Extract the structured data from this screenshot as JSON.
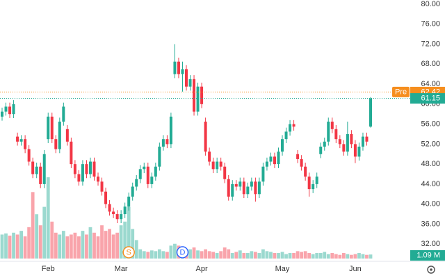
{
  "chart_data": {
    "type": "candlestick",
    "categories": [
      null,
      null,
      null,
      null,
      null,
      null,
      null,
      null,
      null,
      null,
      null,
      null,
      "Feb",
      null,
      null,
      null,
      null,
      null,
      null,
      null,
      null,
      null,
      null,
      null,
      null,
      null,
      null,
      null,
      null,
      null,
      null,
      "Mar",
      null,
      null,
      null,
      null,
      null,
      null,
      null,
      null,
      null,
      null,
      null,
      null,
      null,
      null,
      null,
      null,
      null,
      null,
      null,
      null,
      "Apr",
      null,
      null,
      null,
      null,
      null,
      null,
      null,
      null,
      null,
      null,
      null,
      null,
      null,
      null,
      null,
      null,
      null,
      null,
      null,
      null,
      "May",
      null,
      null,
      null,
      null,
      null,
      null,
      null,
      null,
      null,
      null,
      null,
      null,
      null,
      null,
      null,
      null,
      null,
      null,
      "Jun",
      null,
      null,
      null,
      null
    ],
    "open": [
      57.5,
      58.5,
      59.5,
      58.0,
      53.5,
      52.5,
      53.0,
      51.0,
      48.5,
      46.0,
      47.5,
      44.0,
      53.0,
      57.5,
      53.0,
      51.0,
      56.5,
      55.0,
      52.5,
      48.0,
      46.0,
      44.5,
      48.0,
      46.0,
      48.5,
      45.5,
      44.5,
      42.5,
      40.0,
      38.5,
      38.0,
      37.0,
      38.0,
      39.5,
      41.5,
      43.5,
      45.0,
      47.0,
      47.5,
      44.0,
      45.5,
      47.5,
      51.5,
      53.0,
      52.0,
      66.0,
      68.5,
      66.0,
      67.0,
      63.5,
      65.0,
      58.5,
      63.5,
      56.5,
      50.5,
      48.5,
      47.0,
      48.5,
      47.5,
      45.0,
      41.5,
      44.0,
      43.5,
      44.5,
      42.0,
      43.5,
      44.5,
      42.0,
      44.5,
      47.5,
      48.5,
      49.5,
      48.0,
      50.5,
      53.0,
      54.5,
      56.0,
      50.0,
      49.0,
      47.5,
      45.5,
      43.0,
      44.0,
      50.0,
      51.5,
      52.5,
      56.5,
      55.0,
      53.0,
      52.0,
      50.5,
      54.0,
      52.0,
      49.5,
      51.5,
      53.5,
      55.5
    ],
    "high": [
      59.3,
      60.3,
      60.3,
      60.8,
      54.3,
      53.8,
      53.8,
      51.8,
      49.3,
      48.3,
      48.3,
      50.8,
      58.3,
      58.3,
      53.8,
      57.3,
      60.3,
      55.8,
      53.3,
      48.8,
      46.8,
      48.8,
      48.8,
      49.3,
      49.3,
      46.3,
      45.3,
      43.3,
      40.8,
      39.3,
      38.8,
      38.8,
      40.3,
      42.3,
      44.3,
      45.8,
      47.8,
      48.3,
      48.3,
      46.3,
      48.3,
      52.3,
      53.8,
      53.8,
      58.3,
      72.0,
      69.3,
      68.5,
      67.8,
      65.8,
      65.8,
      64.3,
      64.3,
      57.3,
      51.3,
      49.3,
      49.3,
      49.3,
      48.3,
      45.8,
      44.8,
      44.8,
      45.3,
      45.3,
      44.3,
      45.3,
      45.3,
      45.3,
      48.3,
      49.3,
      50.3,
      50.3,
      51.3,
      53.8,
      55.3,
      56.8,
      56.8,
      50.8,
      49.8,
      48.3,
      46.3,
      44.8,
      46.3,
      52.3,
      53.3,
      57.3,
      57.3,
      55.8,
      53.8,
      52.8,
      56.5,
      54.8,
      52.8,
      52.3,
      54.3,
      54.3,
      61.4
    ],
    "low": [
      56.7,
      57.7,
      57.2,
      57.2,
      51.7,
      51.7,
      50.2,
      47.7,
      45.2,
      45.2,
      43.2,
      43.2,
      52.2,
      52.2,
      50.2,
      50.2,
      55.7,
      51.7,
      47.2,
      45.2,
      43.7,
      43.7,
      45.2,
      45.2,
      44.7,
      43.7,
      41.7,
      39.2,
      37.7,
      37.2,
      36.2,
      36.2,
      37.2,
      38.7,
      40.7,
      42.7,
      44.2,
      46.2,
      43.2,
      43.2,
      44.7,
      46.7,
      50.7,
      51.2,
      51.2,
      65.2,
      65.2,
      62.5,
      62.7,
      62.7,
      57.7,
      57.7,
      59.2,
      49.7,
      47.7,
      46.2,
      46.2,
      46.7,
      44.2,
      40.7,
      40.7,
      42.7,
      42.7,
      41.2,
      41.2,
      42.7,
      40.5,
      41.2,
      43.7,
      46.7,
      47.7,
      47.2,
      47.2,
      49.7,
      52.2,
      53.7,
      54.7,
      48.2,
      46.7,
      44.7,
      41.5,
      42.2,
      43.2,
      49.2,
      50.7,
      51.7,
      54.2,
      52.2,
      51.2,
      49.7,
      49.7,
      51.2,
      48.2,
      48.7,
      50.7,
      51.7,
      55.3
    ],
    "close": [
      58.5,
      59.5,
      58.0,
      60.0,
      52.5,
      53.0,
      51.0,
      48.5,
      46.0,
      47.5,
      44.0,
      50.0,
      57.5,
      53.0,
      51.0,
      56.5,
      59.5,
      52.5,
      48.0,
      46.0,
      44.5,
      48.0,
      46.0,
      48.5,
      45.5,
      44.5,
      42.5,
      40.0,
      38.5,
      38.0,
      37.0,
      38.0,
      39.5,
      41.5,
      43.5,
      45.0,
      47.0,
      47.5,
      44.0,
      45.5,
      47.5,
      51.5,
      53.0,
      52.0,
      57.5,
      68.5,
      66.0,
      67.0,
      63.5,
      65.0,
      58.5,
      63.5,
      60.0,
      50.5,
      48.5,
      47.0,
      48.5,
      47.5,
      45.0,
      41.5,
      44.0,
      43.5,
      44.5,
      42.0,
      43.5,
      44.5,
      42.0,
      44.5,
      47.5,
      48.5,
      49.5,
      48.0,
      50.5,
      53.0,
      54.5,
      56.0,
      55.5,
      49.0,
      47.5,
      45.5,
      43.0,
      44.0,
      45.5,
      51.5,
      52.5,
      56.5,
      55.0,
      53.0,
      52.0,
      50.5,
      54.0,
      52.0,
      49.5,
      51.5,
      53.5,
      52.5,
      61.15
    ],
    "volume": [
      6.5,
      6.8,
      6.2,
      7.0,
      6.5,
      7.5,
      6.0,
      8.5,
      18,
      12,
      9,
      14,
      22,
      10,
      7,
      6.5,
      7.5,
      6,
      6.5,
      7,
      6,
      7.5,
      6.5,
      8.5,
      7,
      6,
      9,
      7.5,
      8,
      6.5,
      7,
      9,
      10,
      14,
      8,
      5,
      2.5,
      2,
      1.8,
      2.2,
      2.0,
      2.5,
      2.0,
      1.8,
      3.5,
      4.0,
      3.5,
      2.5,
      2.0,
      2.5,
      3.0,
      2.2,
      2.0,
      2.5,
      2.0,
      1.8,
      1.5,
      2.0,
      3.0,
      2.5,
      1.5,
      1.8,
      2.2,
      1.5,
      1.5,
      2.0,
      1.8,
      1.5,
      2.5,
      2.0,
      1.8,
      1.5,
      1.5,
      1.8,
      1.2,
      1.5,
      1.5,
      2.0,
      1.8,
      2.0,
      1.5,
      1.2,
      1.5,
      1.5,
      1.8,
      1.2,
      1.5,
      1.2,
      1.0,
      1.5,
      1.2,
      1.0,
      1.2,
      1.5,
      1.2,
      1.0,
      1.09
    ],
    "last_volume_label": "1.09 M",
    "premarket": {
      "label": "Pre",
      "value": 62.42,
      "color": "#f68e1e"
    },
    "up_color": "#22ab94",
    "down_color": "#f23645",
    "events": [
      {
        "label": "S",
        "category": 33,
        "color": "#f68e1e"
      },
      {
        "label": "D",
        "category": 47,
        "color": "#2962ff"
      }
    ],
    "ylim": [
      28,
      80.83
    ],
    "yticks": [
      {
        "value": 80,
        "label": "80.00"
      },
      {
        "value": 76,
        "label": "76.00"
      },
      {
        "value": 72,
        "label": "72.00"
      },
      {
        "value": 68,
        "label": "68.00"
      },
      {
        "value": 64,
        "label": "64.00"
      },
      {
        "value": 60,
        "label": "60.00"
      },
      {
        "value": 56,
        "label": "56.00"
      },
      {
        "value": 52,
        "label": "52.00"
      },
      {
        "value": 48,
        "label": "48.00"
      },
      {
        "value": 44,
        "label": "44.00"
      },
      {
        "value": 40,
        "label": "40.00"
      },
      {
        "value": 36,
        "label": "36.00"
      },
      {
        "value": 32,
        "label": "32.00"
      }
    ],
    "y2lim": [
      0,
      70
    ],
    "grid": false
  }
}
